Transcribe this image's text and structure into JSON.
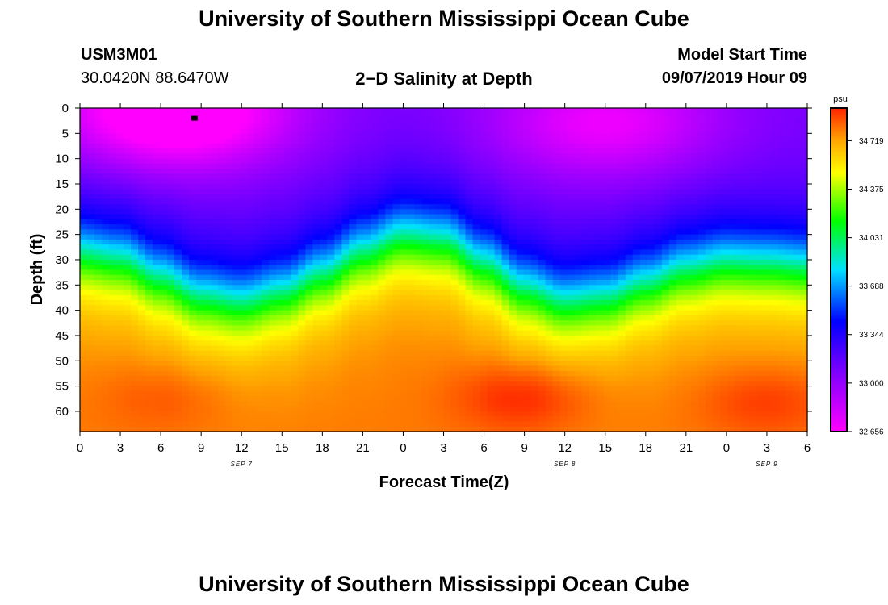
{
  "page": {
    "title_top": "University of Southern Mississippi Ocean Cube",
    "title_bottom": "University of Southern Mississippi Ocean Cube",
    "station_id": "USM3M01",
    "station_location": "30.0420N 88.6470W",
    "plot_title": "2−D Salinity at Depth",
    "model_start_label": "Model Start Time",
    "model_start_value": "09/07/2019 Hour 09"
  },
  "chart_data": {
    "type": "heatmap",
    "title": "2−D Salinity at Depth",
    "xlabel": "Forecast Time(Z)",
    "ylabel": "Depth (ft)",
    "x_ticks": [
      "0",
      "3",
      "6",
      "9",
      "12",
      "15",
      "18",
      "21",
      "0",
      "3",
      "6",
      "9",
      "12",
      "15",
      "18",
      "21",
      "0",
      "3",
      "6"
    ],
    "x_range_hours": [
      0,
      54
    ],
    "date_labels": [
      {
        "text": "SEP 7",
        "hour": 12
      },
      {
        "text": "SEP 8",
        "hour": 36
      },
      {
        "text": "SEP 9",
        "hour": 51
      }
    ],
    "y_ticks": [
      0,
      5,
      10,
      15,
      20,
      25,
      30,
      35,
      40,
      45,
      50,
      55,
      60
    ],
    "y_range_ft": [
      0,
      64
    ],
    "marker": {
      "hour": 8.5,
      "depth_ft": 2
    },
    "colorbar": {
      "unit": "psu",
      "min": 32.656,
      "max": 34.95,
      "tick_values": [
        "32.656",
        "33.000",
        "33.344",
        "33.688",
        "34.031",
        "34.375",
        "34.719"
      ]
    },
    "isohaline_depth_profile": {
      "hours": [
        0,
        3,
        6,
        9,
        12,
        15,
        18,
        21,
        24,
        27,
        30,
        33,
        36,
        39,
        42,
        45,
        48,
        51,
        54
      ],
      "depth_ft": [
        28.3,
        29.5,
        33.2,
        36.9,
        38.1,
        36.1,
        32.4,
        28.0,
        24.9,
        25.7,
        30.3,
        35.3,
        38.0,
        37.2,
        34.4,
        31.5,
        30.1,
        30.4,
        31.0
      ]
    },
    "surface_min_regions": [
      {
        "hour": 7,
        "depth_ft": 1,
        "value": 32.66
      },
      {
        "hour": 39,
        "depth_ft": 3,
        "value": 32.92
      }
    ],
    "bottom_max_regions": [
      {
        "hour": 6.5,
        "depth_ft": 57,
        "value": 34.86
      },
      {
        "hour": 33,
        "depth_ft": 57,
        "value": 34.95
      },
      {
        "hour": 51,
        "depth_ft": 58,
        "value": 34.9
      }
    ]
  }
}
